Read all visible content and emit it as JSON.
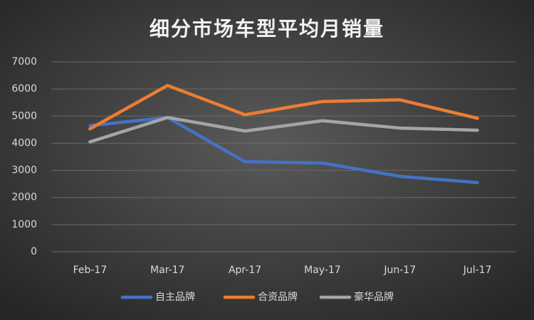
{
  "chart_data": {
    "type": "line",
    "title": "细分市场车型平均月销量",
    "categories": [
      "Feb-17",
      "Mar-17",
      "Apr-17",
      "May-17",
      "Jun-17",
      "Jul-17"
    ],
    "series": [
      {
        "name": "自主品牌",
        "color": "#4472c4",
        "values": [
          4650,
          4950,
          3320,
          3270,
          2780,
          2550
        ]
      },
      {
        "name": "合资品牌",
        "color": "#ed7d31",
        "values": [
          4530,
          6130,
          5050,
          5540,
          5600,
          4920
        ]
      },
      {
        "name": "豪华品牌",
        "color": "#a5a5a5",
        "values": [
          4050,
          4950,
          4450,
          4830,
          4560,
          4480
        ]
      }
    ],
    "ylim": [
      0,
      7000
    ],
    "yticks": [
      0,
      1000,
      2000,
      3000,
      4000,
      5000,
      6000,
      7000
    ],
    "grid": true,
    "legend": "bottom"
  }
}
